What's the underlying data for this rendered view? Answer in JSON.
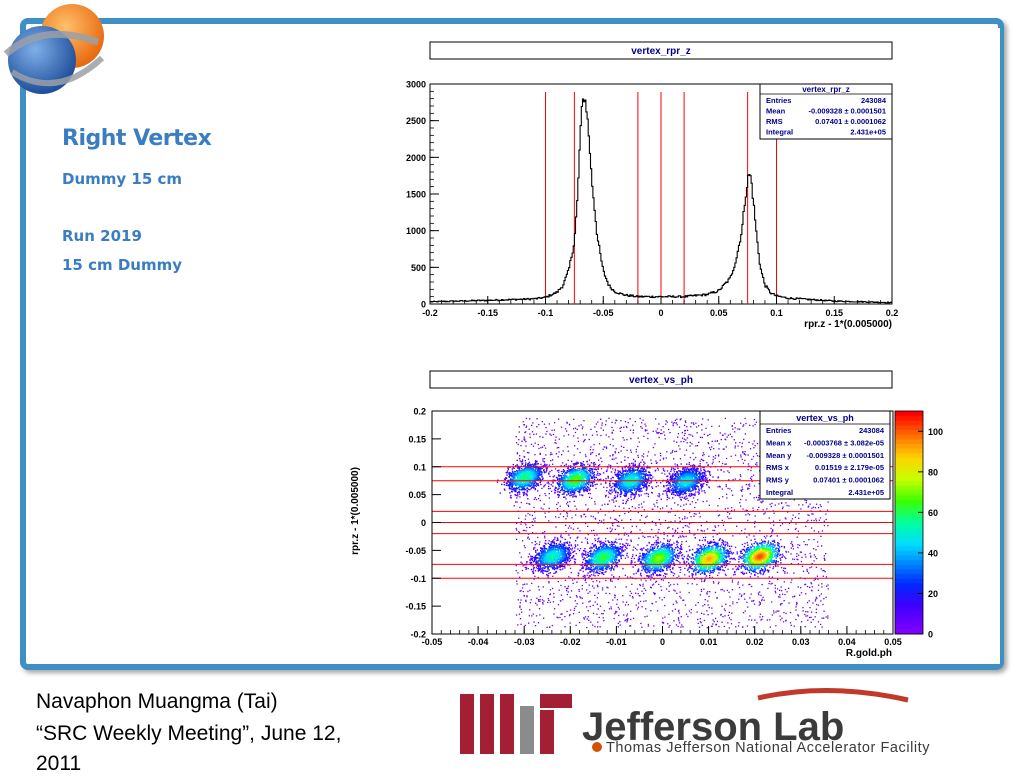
{
  "slide": {
    "title": "Right Vertex",
    "line1": "Dummy 15 cm",
    "line2": "Run 2019",
    "line3": "15 cm Dummy"
  },
  "footer": {
    "line1": "Navaphon Muangma (Tai)",
    "line2": "“SRC Weekly Meeting”, June 12,",
    "line3": "2011",
    "logo_mit": "MIT",
    "logo_jlab": "Jefferson Lab",
    "logo_jlab_sub": "Thomas Jefferson National Accelerator Facility"
  },
  "colors": {
    "frame": "#3d8fc4",
    "accent_text": "#3a7dc0",
    "cut_lines": "#ff0000",
    "mit_red": "#a31f34"
  },
  "chart_data": [
    {
      "type": "line",
      "title": "vertex_rpr_z",
      "xlabel": "rpr.z - 1*(0.005000)",
      "ylabel": "",
      "xlim": [
        -0.2,
        0.2
      ],
      "ylim": [
        0,
        3000
      ],
      "xticks": [
        "-0.2",
        "-0.15",
        "-0.1",
        "-0.05",
        "0",
        "0.05",
        "0.1",
        "0.15",
        "0.2"
      ],
      "yticks": [
        "0",
        "500",
        "1000",
        "1500",
        "2000",
        "2500",
        "3000"
      ],
      "x": [
        -0.2,
        -0.15,
        -0.11,
        -0.1,
        -0.09,
        -0.085,
        -0.08,
        -0.075,
        -0.072,
        -0.07,
        -0.068,
        -0.066,
        -0.064,
        -0.062,
        -0.06,
        -0.055,
        -0.05,
        -0.045,
        -0.04,
        -0.035,
        -0.03,
        -0.02,
        0,
        0.02,
        0.04,
        0.05,
        0.06,
        0.065,
        0.07,
        0.073,
        0.076,
        0.078,
        0.08,
        0.083,
        0.086,
        0.09,
        0.095,
        0.1,
        0.11,
        0.13,
        0.15,
        0.2
      ],
      "y": [
        30,
        50,
        70,
        90,
        160,
        250,
        450,
        850,
        1500,
        2300,
        2750,
        2830,
        2600,
        2200,
        1700,
        900,
        450,
        250,
        170,
        140,
        120,
        100,
        100,
        100,
        130,
        180,
        350,
        600,
        1000,
        1450,
        1780,
        1720,
        1400,
        900,
        500,
        260,
        150,
        110,
        80,
        60,
        40,
        20
      ],
      "vlines": [
        -0.1,
        -0.075,
        -0.02,
        0,
        0.02,
        0.075,
        0.1
      ],
      "stats": {
        "name": "vertex_rpr_z",
        "rows": [
          {
            "label": "Entries",
            "value": "243084"
          },
          {
            "label": "Mean",
            "value": "-0.009328 ± 0.0001501"
          },
          {
            "label": "RMS",
            "value": "0.07401 ± 0.0001062"
          },
          {
            "label": "Integral",
            "value": "2.431e+05"
          }
        ]
      }
    },
    {
      "type": "heatmap",
      "title": "vertex_vs_ph",
      "xlabel": "R.gold.ph",
      "ylabel": "rpr.z - 1*(0.005000)",
      "xlim": [
        -0.05,
        0.05
      ],
      "ylim": [
        -0.2,
        0.2
      ],
      "xticks": [
        "-0.05",
        "-0.04",
        "-0.03",
        "-0.02",
        "-0.01",
        "0",
        "0.01",
        "0.02",
        "0.03",
        "0.04",
        "0.05"
      ],
      "yticks": [
        "-0.2",
        "-0.15",
        "-0.1",
        "-0.05",
        "0",
        "0.05",
        "0.1",
        "0.15",
        "0.2"
      ],
      "zlim": [
        0,
        110
      ],
      "zticks": [
        "0",
        "20",
        "40",
        "60",
        "80",
        "100"
      ],
      "blobs": [
        {
          "x": -0.03,
          "y": 0.082,
          "z": 55
        },
        {
          "x": -0.019,
          "y": 0.078,
          "z": 65
        },
        {
          "x": -0.007,
          "y": 0.076,
          "z": 50
        },
        {
          "x": 0.005,
          "y": 0.075,
          "z": 45
        },
        {
          "x": -0.024,
          "y": -0.06,
          "z": 50
        },
        {
          "x": -0.013,
          "y": -0.062,
          "z": 60
        },
        {
          "x": -0.001,
          "y": -0.063,
          "z": 70
        },
        {
          "x": 0.01,
          "y": -0.064,
          "z": 90
        },
        {
          "x": 0.021,
          "y": -0.06,
          "z": 100
        }
      ],
      "hlines": [
        0.1,
        0.075,
        0.02,
        0,
        -0.02,
        -0.075,
        -0.1
      ],
      "stats": {
        "name": "vertex_vs_ph",
        "rows": [
          {
            "label": "Entries",
            "value": "243084"
          },
          {
            "label": "Mean x",
            "value": "-0.0003768 ± 3.082e-05"
          },
          {
            "label": "Mean y",
            "value": "-0.009328 ± 0.0001501"
          },
          {
            "label": "RMS x",
            "value": "0.01519 ± 2.179e-05"
          },
          {
            "label": "RMS y",
            "value": "0.07401 ± 0.0001062"
          },
          {
            "label": "Integral",
            "value": "2.431e+05"
          }
        ]
      }
    }
  ]
}
